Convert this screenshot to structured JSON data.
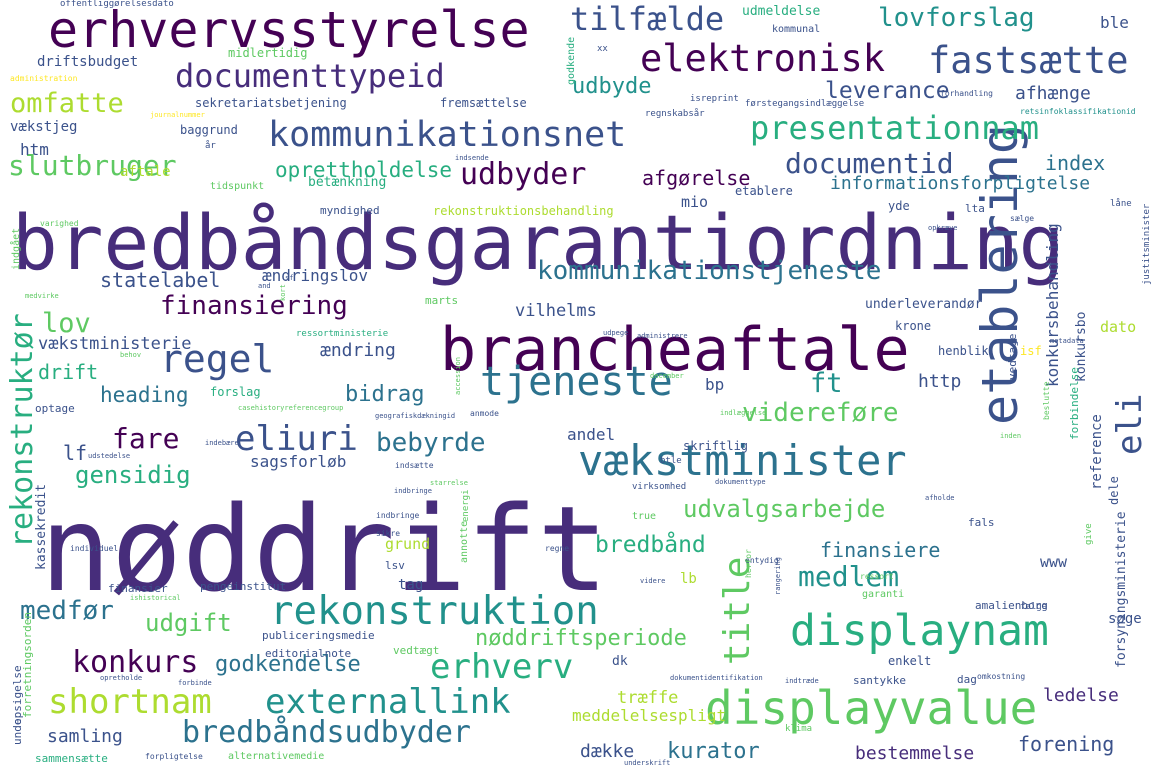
{
  "palette": [
    "#440154",
    "#472d7b",
    "#3b528b",
    "#2c728e",
    "#21918c",
    "#28ae80",
    "#5ec962",
    "#addc30",
    "#fde725"
  ],
  "words": [
    {
      "text": "bredbåndsgarantiordning",
      "color": "#472d7b"
    },
    {
      "text": "nøddrift",
      "color": "#472d7b"
    },
    {
      "text": "brancheaftale",
      "color": "#440154"
    },
    {
      "text": "etablering",
      "color": "#3b528b"
    },
    {
      "text": "erhvervsstyrelse",
      "color": "#440154"
    },
    {
      "text": "vækstminister",
      "color": "#2c728e"
    },
    {
      "text": "displayvalue",
      "color": "#5ec962"
    },
    {
      "text": "displaynam",
      "color": "#28ae80"
    },
    {
      "text": "rekonstruktion",
      "color": "#21918c"
    },
    {
      "text": "kommunikationsnet",
      "color": "#3b528b"
    },
    {
      "text": "elektronisk",
      "color": "#440154"
    },
    {
      "text": "fastsætte",
      "color": "#3b528b"
    },
    {
      "text": "documenttypeid",
      "color": "#472d7b"
    },
    {
      "text": "presentationnam",
      "color": "#28ae80"
    },
    {
      "text": "tjeneste",
      "color": "#2c728e"
    },
    {
      "text": "regel",
      "color": "#3b528b"
    },
    {
      "text": "udbyder",
      "color": "#440154"
    },
    {
      "text": "documentid",
      "color": "#3b528b"
    },
    {
      "text": "tilfælde",
      "color": "#3b528b"
    },
    {
      "text": "lovforslag",
      "color": "#21918c"
    },
    {
      "text": "title",
      "color": "#5ec962"
    },
    {
      "text": "shortnam",
      "color": "#addc30"
    },
    {
      "text": "externallink",
      "color": "#21918c"
    },
    {
      "text": "erhverv",
      "color": "#28ae80"
    },
    {
      "text": "bredbåndsudbyder",
      "color": "#2c728e"
    },
    {
      "text": "konkurs",
      "color": "#440154"
    },
    {
      "text": "medlem",
      "color": "#21918c"
    },
    {
      "text": "eliuri",
      "color": "#3b528b"
    },
    {
      "text": "eli",
      "color": "#3b528b"
    },
    {
      "text": "rekonstruktør",
      "color": "#28ae80"
    },
    {
      "text": "kommunikationstjeneste",
      "color": "#2c728e"
    },
    {
      "text": "finansiering",
      "color": "#440154"
    },
    {
      "text": "udvalgsarbejde",
      "color": "#5ec962"
    },
    {
      "text": "omfatte",
      "color": "#addc30"
    },
    {
      "text": "slutbruger",
      "color": "#5ec962"
    },
    {
      "text": "leverance",
      "color": "#3b528b"
    },
    {
      "text": "udbyde",
      "color": "#21918c"
    },
    {
      "text": "afhænge",
      "color": "#3b528b"
    },
    {
      "text": "oprettholdelse",
      "color": "#28ae80"
    },
    {
      "text": "afgørelse",
      "color": "#440154"
    },
    {
      "text": "index",
      "color": "#2c728e"
    },
    {
      "text": "informationsforpligtelse",
      "color": "#2c728e"
    },
    {
      "text": "statelabel",
      "color": "#3b528b"
    },
    {
      "text": "lov",
      "color": "#5ec962"
    },
    {
      "text": "fare",
      "color": "#440154"
    },
    {
      "text": "bebyrde",
      "color": "#2c728e"
    },
    {
      "text": "gensidig",
      "color": "#28ae80"
    },
    {
      "text": "bidrag",
      "color": "#2c728e"
    },
    {
      "text": "heading",
      "color": "#2c728e"
    },
    {
      "text": "videreføre",
      "color": "#5ec962"
    },
    {
      "text": "ft",
      "color": "#21918c"
    },
    {
      "text": "bredbånd",
      "color": "#28ae80"
    },
    {
      "text": "finansiere",
      "color": "#2c728e"
    },
    {
      "text": "medfør",
      "color": "#2c728e"
    },
    {
      "text": "udgift",
      "color": "#5ec962"
    },
    {
      "text": "godkendelse",
      "color": "#2c728e"
    },
    {
      "text": "nøddriftsperiode",
      "color": "#5ec962"
    },
    {
      "text": "kurator",
      "color": "#2c728e"
    },
    {
      "text": "forening",
      "color": "#3b528b"
    },
    {
      "text": "ledelse",
      "color": "#472d7b"
    },
    {
      "text": "bestemmelse",
      "color": "#472d7b"
    },
    {
      "text": "samling",
      "color": "#3b528b"
    },
    {
      "text": "dække",
      "color": "#3b528b"
    },
    {
      "text": "træffe",
      "color": "#addc30"
    },
    {
      "text": "meddelelsespligt",
      "color": "#addc30"
    },
    {
      "text": "konkursbehandling",
      "color": "#3b528b"
    },
    {
      "text": "vækstministerie",
      "color": "#3b528b"
    },
    {
      "text": "drift",
      "color": "#28ae80"
    },
    {
      "text": "ændring",
      "color": "#3b528b"
    },
    {
      "text": "vilhelms",
      "color": "#3b528b"
    },
    {
      "text": "ændringslov",
      "color": "#3b528b"
    },
    {
      "text": "lf",
      "color": "#3b528b"
    },
    {
      "text": "http",
      "color": "#3b528b"
    },
    {
      "text": "bp",
      "color": "#3b528b"
    },
    {
      "text": "andel",
      "color": "#3b528b"
    },
    {
      "text": "sagsforløb",
      "color": "#3b528b"
    },
    {
      "text": "kassekredit",
      "color": "#3b528b"
    },
    {
      "text": "driftsbudget",
      "color": "#3b528b"
    },
    {
      "text": "sekretariatsbetjening",
      "color": "#3b528b"
    },
    {
      "text": "udmeldelse",
      "color": "#28ae80"
    },
    {
      "text": "ble",
      "color": "#3b528b"
    },
    {
      "text": "htm",
      "color": "#3b528b"
    },
    {
      "text": "vækstjeg",
      "color": "#3b528b"
    },
    {
      "text": "baggrund",
      "color": "#3b528b"
    },
    {
      "text": "midlertidig",
      "color": "#5ec962"
    },
    {
      "text": "fremsættelse",
      "color": "#3b528b"
    },
    {
      "text": "aftale",
      "color": "#addc30"
    },
    {
      "text": "betænkning",
      "color": "#28ae80"
    },
    {
      "text": "mio",
      "color": "#3b528b"
    },
    {
      "text": "etablere",
      "color": "#3b528b"
    },
    {
      "text": "yde",
      "color": "#3b528b"
    },
    {
      "text": "lta",
      "color": "#3b528b"
    },
    {
      "text": "dato",
      "color": "#addc30"
    },
    {
      "text": "konkursbo",
      "color": "#3b528b"
    },
    {
      "text": "reference",
      "color": "#3b528b"
    },
    {
      "text": "www",
      "color": "#3b528b"
    },
    {
      "text": "søge",
      "color": "#3b528b"
    },
    {
      "text": "lb",
      "color": "#addc30"
    },
    {
      "text": "grund",
      "color": "#addc30"
    },
    {
      "text": "tag",
      "color": "#3b528b"
    },
    {
      "text": "dk",
      "color": "#3b528b"
    },
    {
      "text": "enkelt",
      "color": "#3b528b"
    },
    {
      "text": "dag",
      "color": "#3b528b"
    },
    {
      "text": "skriftlig",
      "color": "#3b528b"
    },
    {
      "text": "underleverandør",
      "color": "#3b528b"
    },
    {
      "text": "krone",
      "color": "#3b528b"
    },
    {
      "text": "henblik",
      "color": "#3b528b"
    },
    {
      "text": "vedtage",
      "color": "#3b528b"
    },
    {
      "text": "forsyningsministerie",
      "color": "#3b528b"
    },
    {
      "text": "dele",
      "color": "#3b528b"
    },
    {
      "text": "forbindelse",
      "color": "#28ae80"
    },
    {
      "text": "myndighed",
      "color": "#3b528b"
    },
    {
      "text": "rekonstruktionsbehandling",
      "color": "#addc30"
    },
    {
      "text": "forslag",
      "color": "#28ae80"
    },
    {
      "text": "marts",
      "color": "#5ec962"
    },
    {
      "text": "optage",
      "color": "#3b528b"
    },
    {
      "text": "publiceringsmedie",
      "color": "#3b528b"
    },
    {
      "text": "editorialnote",
      "color": "#3b528b"
    },
    {
      "text": "pengeinstitut",
      "color": "#3b528b"
    },
    {
      "text": "finansier",
      "color": "#3b528b"
    },
    {
      "text": "amalienborg",
      "color": "#3b528b"
    },
    {
      "text": "vedtægt",
      "color": "#5ec962"
    },
    {
      "text": "santykke",
      "color": "#3b528b"
    },
    {
      "text": "opsigelse",
      "color": "#3b528b"
    },
    {
      "text": "unde",
      "color": "#3b528b"
    },
    {
      "text": "sammensætte",
      "color": "#28ae80"
    },
    {
      "text": "alternativemedie",
      "color": "#5ec962"
    },
    {
      "text": "godkende",
      "color": "#28ae80"
    },
    {
      "text": "tidspunkt",
      "color": "#5ec962"
    },
    {
      "text": "indgået",
      "color": "#5ec962"
    },
    {
      "text": "lsv",
      "color": "#3b528b"
    },
    {
      "text": "true",
      "color": "#5ec962"
    },
    {
      "text": "fals",
      "color": "#3b528b"
    },
    {
      "text": "give",
      "color": "#5ec962"
    },
    {
      "text": "garanti",
      "color": "#5ec962"
    },
    {
      "text": "låne",
      "color": "#3b528b"
    },
    {
      "text": "justitsminister",
      "color": "#3b528b"
    },
    {
      "text": "kommunal",
      "color": "#3b528b"
    },
    {
      "text": "offentliggørelsesdato",
      "color": "#3b528b"
    },
    {
      "text": "administration",
      "color": "#fde725"
    },
    {
      "text": "journalnummer",
      "color": "#fde725"
    },
    {
      "text": "regnskabsår",
      "color": "#3b528b"
    },
    {
      "text": "isreprint",
      "color": "#3b528b"
    },
    {
      "text": "førstegangsindlæggelse",
      "color": "#3b528b"
    },
    {
      "text": "retsinfoklassifikationid",
      "color": "#21918c"
    },
    {
      "text": "forhandling",
      "color": "#3b528b"
    },
    {
      "text": "indsende",
      "color": "#3b528b"
    },
    {
      "text": "varighed",
      "color": "#5ec962"
    },
    {
      "text": "opkræve",
      "color": "#3b528b"
    },
    {
      "text": "sælge",
      "color": "#3b528b"
    },
    {
      "text": "medvirke",
      "color": "#5ec962"
    },
    {
      "text": "and",
      "color": "#3b528b"
    },
    {
      "text": "behov",
      "color": "#5ec962"
    },
    {
      "text": "ressortministerie",
      "color": "#28ae80"
    },
    {
      "text": "udpege",
      "color": "#3b528b"
    },
    {
      "text": "administrere",
      "color": "#3b528b"
    },
    {
      "text": "metadata",
      "color": "#3b528b"
    },
    {
      "text": "anmode",
      "color": "#3b528b"
    },
    {
      "text": "december",
      "color": "#5ec962"
    },
    {
      "text": "indlæggelse",
      "color": "#5ec962"
    },
    {
      "text": "casehistoryreferencegroup",
      "color": "#5ec962"
    },
    {
      "text": "geografiskdækningid",
      "color": "#3b528b"
    },
    {
      "text": "udstedelse",
      "color": "#3b528b"
    },
    {
      "text": "indsætte",
      "color": "#3b528b"
    },
    {
      "text": "indbringe",
      "color": "#3b528b"
    },
    {
      "text": "virksomhed",
      "color": "#3b528b"
    },
    {
      "text": "dokumenttype",
      "color": "#3b528b"
    },
    {
      "text": "individuel",
      "color": "#3b528b"
    },
    {
      "text": "ishistorical",
      "color": "#5ec962"
    },
    {
      "text": "regne",
      "color": "#3b528b"
    },
    {
      "text": "entydig",
      "color": "#3b528b"
    },
    {
      "text": "herfor",
      "color": "#5ec962"
    },
    {
      "text": "videre",
      "color": "#3b528b"
    },
    {
      "text": "ressort",
      "color": "#5ec962"
    },
    {
      "text": "annotte",
      "color": "#5ec962"
    },
    {
      "text": "energi",
      "color": "#5ec962"
    },
    {
      "text": "sikre",
      "color": "#3b528b"
    },
    {
      "text": "indbringe",
      "color": "#3b528b"
    },
    {
      "text": "forbinde",
      "color": "#3b528b"
    },
    {
      "text": "opretholde",
      "color": "#3b528b"
    },
    {
      "text": "forpligtelse",
      "color": "#3b528b"
    },
    {
      "text": "underskrift",
      "color": "#3b528b"
    },
    {
      "text": "klima",
      "color": "#5ec962"
    },
    {
      "text": "indtræde",
      "color": "#3b528b"
    },
    {
      "text": "omkostning",
      "color": "#3b528b"
    },
    {
      "text": "dokumentidentifikation",
      "color": "#3b528b"
    },
    {
      "text": "forretningsorden",
      "color": "#5ec962"
    },
    {
      "text": "afholde",
      "color": "#3b528b"
    },
    {
      "text": "beslutte",
      "color": "#5ec962"
    },
    {
      "text": "indebære",
      "color": "#3b528b"
    },
    {
      "text": "btle",
      "color": "#3b528b"
    },
    {
      "text": "inden",
      "color": "#5ec962"
    },
    {
      "text": "følge",
      "color": "#3b528b"
    },
    {
      "text": "rangering",
      "color": "#3b528b"
    },
    {
      "text": "starrelse",
      "color": "#5ec962"
    },
    {
      "text": "accession",
      "color": "#5ec962"
    },
    {
      "text": "år",
      "color": "#3b528b"
    },
    {
      "text": "xx",
      "color": "#3b528b"
    },
    {
      "text": "isf",
      "color": "#fde725"
    },
    {
      "text": "kort",
      "color": "#5ec962"
    },
    {
      "text": "sf",
      "color": "#3b528b"
    }
  ]
}
